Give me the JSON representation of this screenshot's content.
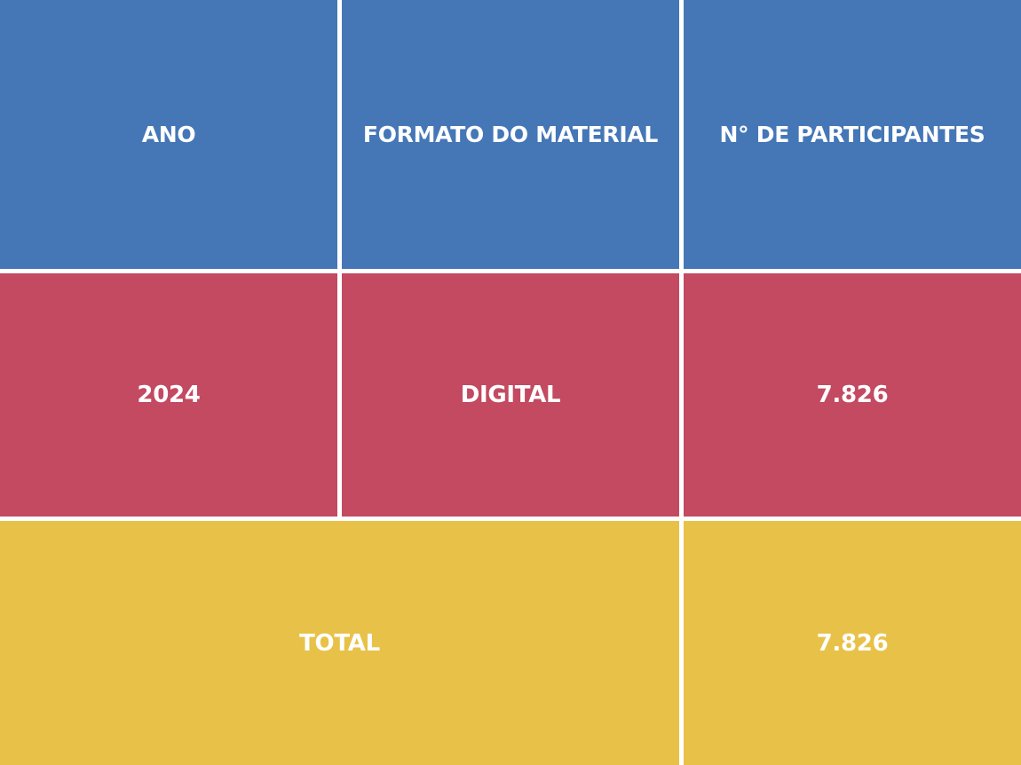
{
  "colors": {
    "header": "#4577b7",
    "row": "#c34a61",
    "total": "#e8c148",
    "text": "#ffffff",
    "grid": "#ffffff"
  },
  "table": {
    "headers": [
      "ANO",
      "FORMATO DO MATERIAL",
      "N° DE PARTICIPANTES"
    ],
    "rows": [
      [
        "2024",
        "DIGITAL",
        "7.826"
      ]
    ],
    "total": {
      "label": "TOTAL",
      "value": "7.826"
    }
  }
}
